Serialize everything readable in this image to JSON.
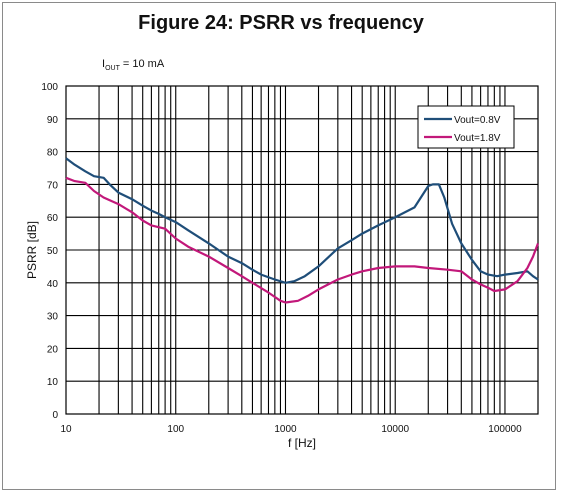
{
  "chart_data": {
    "type": "line",
    "title": "Figure 24: PSRR vs frequency",
    "condition": {
      "prefix": "I",
      "subscript": "OUT",
      "suffix": "= 10 mA"
    },
    "xlabel": "f [Hz]",
    "ylabel": "PSRR [dB]",
    "xscale": "log",
    "xlim": [
      10,
      200000
    ],
    "ylim": [
      0,
      100
    ],
    "xticks": [
      {
        "value": 10,
        "label": "10"
      },
      {
        "value": 100,
        "label": "100"
      },
      {
        "value": 1000,
        "label": "1000"
      },
      {
        "value": 10000,
        "label": "10000"
      },
      {
        "value": 100000,
        "label": "100000"
      }
    ],
    "yticks": [
      0,
      10,
      20,
      30,
      40,
      50,
      60,
      70,
      80,
      90,
      100
    ],
    "grid": true,
    "legend_position": "top-right",
    "series": [
      {
        "name": "Vout=0.8V",
        "color": "#1f4e79",
        "points": [
          [
            10,
            78
          ],
          [
            12,
            76
          ],
          [
            15,
            74
          ],
          [
            18,
            72.5
          ],
          [
            22,
            72
          ],
          [
            25,
            70
          ],
          [
            30,
            67.5
          ],
          [
            40,
            65.5
          ],
          [
            50,
            63.5
          ],
          [
            60,
            62
          ],
          [
            70,
            61
          ],
          [
            80,
            60
          ],
          [
            100,
            58.5
          ],
          [
            130,
            56
          ],
          [
            200,
            52
          ],
          [
            300,
            48
          ],
          [
            400,
            46
          ],
          [
            500,
            44
          ],
          [
            600,
            42.5
          ],
          [
            800,
            41
          ],
          [
            1000,
            40
          ],
          [
            1200,
            40.5
          ],
          [
            1500,
            42
          ],
          [
            2000,
            45
          ],
          [
            3000,
            50.5
          ],
          [
            4000,
            53
          ],
          [
            5000,
            55
          ],
          [
            7000,
            57.5
          ],
          [
            10000,
            60
          ],
          [
            15000,
            63
          ],
          [
            20000,
            69.5
          ],
          [
            22000,
            70
          ],
          [
            25000,
            70
          ],
          [
            28000,
            66
          ],
          [
            33000,
            58
          ],
          [
            40000,
            52
          ],
          [
            50000,
            47
          ],
          [
            60000,
            43.5
          ],
          [
            70000,
            42.5
          ],
          [
            85000,
            42
          ],
          [
            100000,
            42.5
          ],
          [
            130000,
            43
          ],
          [
            160000,
            43.5
          ],
          [
            180000,
            42
          ],
          [
            200000,
            41
          ]
        ]
      },
      {
        "name": "Vout=1.8V",
        "color": "#c2187a",
        "points": [
          [
            10,
            72
          ],
          [
            12,
            71
          ],
          [
            15,
            70.5
          ],
          [
            18,
            68
          ],
          [
            22,
            66
          ],
          [
            30,
            64
          ],
          [
            40,
            61.5
          ],
          [
            50,
            59
          ],
          [
            60,
            57.5
          ],
          [
            80,
            56.5
          ],
          [
            100,
            53.5
          ],
          [
            130,
            51
          ],
          [
            200,
            48
          ],
          [
            300,
            44.5
          ],
          [
            400,
            42
          ],
          [
            500,
            40
          ],
          [
            700,
            37
          ],
          [
            900,
            34.5
          ],
          [
            1000,
            34
          ],
          [
            1300,
            34.5
          ],
          [
            1600,
            36
          ],
          [
            2000,
            38
          ],
          [
            3000,
            41
          ],
          [
            4000,
            42.5
          ],
          [
            5000,
            43.5
          ],
          [
            7000,
            44.5
          ],
          [
            10000,
            45
          ],
          [
            15000,
            45
          ],
          [
            20000,
            44.5
          ],
          [
            30000,
            44
          ],
          [
            40000,
            43.5
          ],
          [
            50000,
            41
          ],
          [
            60000,
            39.5
          ],
          [
            70000,
            38.5
          ],
          [
            80000,
            37.5
          ],
          [
            100000,
            38
          ],
          [
            130000,
            40.5
          ],
          [
            160000,
            44.5
          ],
          [
            180000,
            48
          ],
          [
            200000,
            52
          ]
        ]
      }
    ]
  }
}
